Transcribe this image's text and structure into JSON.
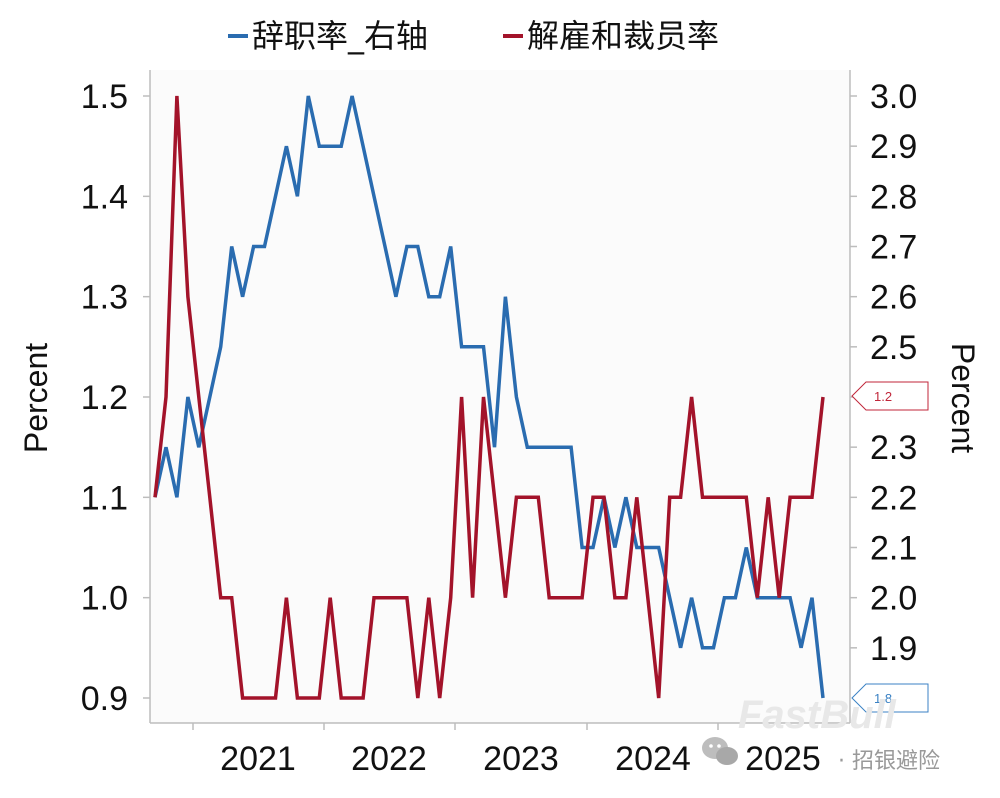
{
  "chart_data": {
    "type": "line",
    "legend": {
      "position": "top",
      "entries": [
        {
          "label": "辞职率_右轴",
          "color": "#2a6cb0"
        },
        {
          "label": "解雇和裁员率",
          "color": "#a3132a"
        }
      ]
    },
    "x_tick_labels": [
      "2021",
      "2022",
      "2023",
      "2024",
      "2025"
    ],
    "y_left": {
      "label": "Percent",
      "ticks": [
        "0.9",
        "1.0",
        "1.1",
        "1.2",
        "1.3",
        "1.4",
        "1.5"
      ],
      "ylim": [
        0.9,
        1.5
      ]
    },
    "y_right": {
      "label": "Percent",
      "ticks": [
        "1.9",
        "2.0",
        "2.1",
        "2.2",
        "2.3",
        "2.4",
        "2.5",
        "2.6",
        "2.7",
        "2.8",
        "2.9",
        "3.0"
      ],
      "ylim": [
        1.8,
        3.0
      ]
    },
    "grid": false,
    "series": [
      {
        "name": "辞职率_右轴",
        "axis": "right",
        "color": "#2a6cb0",
        "values": [
          2.2,
          2.3,
          2.2,
          2.4,
          2.3,
          2.4,
          2.5,
          2.7,
          2.6,
          2.7,
          2.7,
          2.8,
          2.9,
          2.8,
          3.0,
          2.9,
          2.9,
          2.9,
          3.0,
          2.9,
          2.8,
          2.7,
          2.6,
          2.7,
          2.7,
          2.6,
          2.6,
          2.7,
          2.5,
          2.5,
          2.5,
          2.3,
          2.6,
          2.4,
          2.3,
          2.3,
          2.3,
          2.3,
          2.3,
          2.1,
          2.1,
          2.2,
          2.1,
          2.2,
          2.1,
          2.1,
          2.1,
          2.0,
          1.9,
          2.0,
          1.9,
          1.9,
          2.0,
          2.0,
          2.1,
          2.0,
          2.0,
          2.0,
          2.0,
          1.9,
          2.0,
          1.8
        ]
      },
      {
        "name": "解雇和裁员率",
        "axis": "left",
        "color": "#a3132a",
        "values": [
          1.1,
          1.2,
          1.5,
          1.3,
          1.2,
          1.1,
          1.0,
          1.0,
          0.9,
          0.9,
          0.9,
          0.9,
          1.0,
          0.9,
          0.9,
          0.9,
          1.0,
          0.9,
          0.9,
          0.9,
          1.0,
          1.0,
          1.0,
          1.0,
          0.9,
          1.0,
          0.9,
          1.0,
          1.2,
          1.0,
          1.2,
          1.1,
          1.0,
          1.1,
          1.1,
          1.1,
          1.0,
          1.0,
          1.0,
          1.0,
          1.1,
          1.1,
          1.0,
          1.0,
          1.1,
          1.0,
          0.9,
          1.1,
          1.1,
          1.2,
          1.1,
          1.1,
          1.1,
          1.1,
          1.1,
          1.0,
          1.1,
          1.0,
          1.1,
          1.1,
          1.1,
          1.2
        ]
      }
    ],
    "callouts": [
      {
        "text": "1.2",
        "series": "解雇和裁员率",
        "color": "#c0263a"
      },
      {
        "text": "1.8",
        "series": "辞职率_右轴",
        "color": "#3b82c4"
      }
    ]
  },
  "watermark": {
    "logo": "FastBull",
    "source": "· 招银避险"
  }
}
